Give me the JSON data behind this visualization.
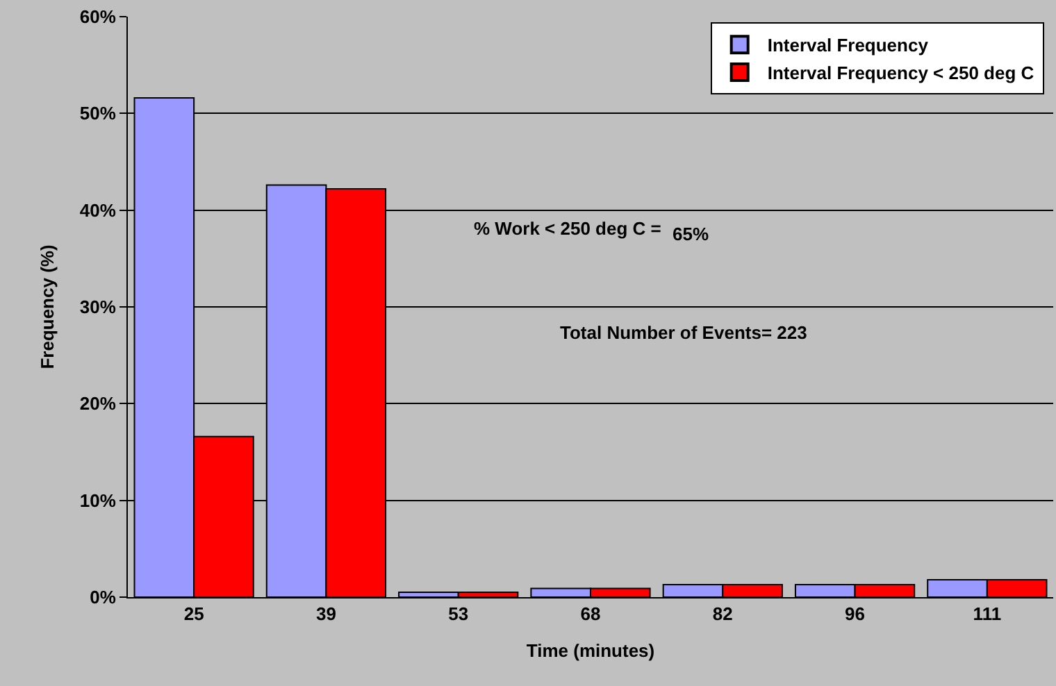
{
  "chart_data": {
    "type": "bar",
    "xlabel": "Time (minutes)",
    "ylabel": "Frequency (%)",
    "categories": [
      "25",
      "39",
      "53",
      "68",
      "82",
      "96",
      "111"
    ],
    "series": [
      {
        "name": "Interval Frequency",
        "color": "#9999ff",
        "values": [
          51.6,
          42.6,
          0.5,
          0.9,
          1.3,
          1.3,
          1.8
        ]
      },
      {
        "name": "Interval Frequency < 250 deg C",
        "color": "#ff0000",
        "values": [
          16.6,
          42.2,
          0.5,
          0.9,
          1.3,
          1.3,
          1.8
        ]
      }
    ],
    "ylim": [
      0,
      60
    ],
    "yticks": [
      {
        "value": 0,
        "label": "0%"
      },
      {
        "value": 10,
        "label": "10%"
      },
      {
        "value": 20,
        "label": "20%"
      },
      {
        "value": 30,
        "label": "30%"
      },
      {
        "value": 40,
        "label": "40%"
      },
      {
        "value": 50,
        "label": "50%"
      },
      {
        "value": 60,
        "label": "60%"
      }
    ],
    "grid": "y",
    "legend": "top right",
    "annotations": [
      "% Work < 250 deg C =",
      "65%",
      "Total Number of Events= 223"
    ]
  }
}
